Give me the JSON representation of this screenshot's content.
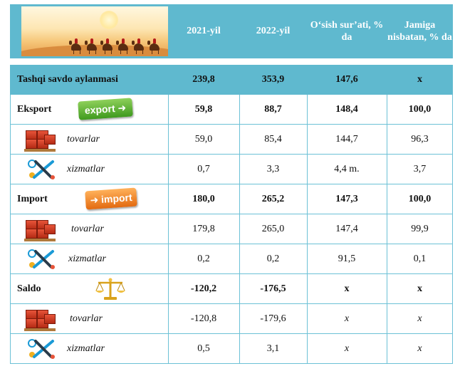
{
  "header": {
    "col1": "2021-yil",
    "col2": "2022-yil",
    "col3": "O‘sish sur’ati, % da",
    "col4": "Jamiga nisbatan, % da"
  },
  "total": {
    "label": "Tashqi savdo aylanmasi",
    "v2021": "239,8",
    "v2022": "353,9",
    "growth": "147,6",
    "share": "x"
  },
  "rows": [
    {
      "label": "Eksport",
      "badge": "export",
      "v2021": "59,8",
      "v2022": "88,7",
      "growth": "148,4",
      "share": "100,0"
    },
    {
      "label": "tovarlar",
      "icon": "goods-boxes-icon",
      "v2021": "59,0",
      "v2022": "85,4",
      "growth": "144,7",
      "share": "96,3"
    },
    {
      "label": "xizmatlar",
      "icon": "services-tools-icon",
      "v2021": "0,7",
      "v2022": "3,3",
      "growth": "4,4 m.",
      "share": "3,7"
    },
    {
      "label": "Import",
      "badge": "import",
      "v2021": "180,0",
      "v2022": "265,2",
      "growth": "147,3",
      "share": "100,0"
    },
    {
      "label": "tovarlar",
      "icon": "goods-boxes-icon",
      "v2021": "179,8",
      "v2022": "265,0",
      "growth": "147,4",
      "share": "99,9"
    },
    {
      "label": "xizmatlar",
      "icon": "services-tools-icon",
      "v2021": "0,2",
      "v2022": "0,2",
      "growth": "91,5",
      "share": "0,1"
    },
    {
      "label": "Saldo",
      "icon": "balance-scale-icon",
      "v2021": "-120,2",
      "v2022": "-176,5",
      "growth": "x",
      "share": "x"
    },
    {
      "label": "tovarlar",
      "icon": "goods-boxes-icon",
      "v2021": "-120,8",
      "v2022": "-179,6",
      "growth": "x",
      "share": "x"
    },
    {
      "label": "xizmatlar",
      "icon": "services-tools-icon",
      "v2021": "0,5",
      "v2022": "3,1",
      "growth": "x",
      "share": "x"
    }
  ],
  "colors": {
    "header_bg": "#5fb9cf",
    "grid": "#6cc1d6",
    "export_badge": "#4fa82a",
    "import_badge": "#ef7d1e"
  }
}
